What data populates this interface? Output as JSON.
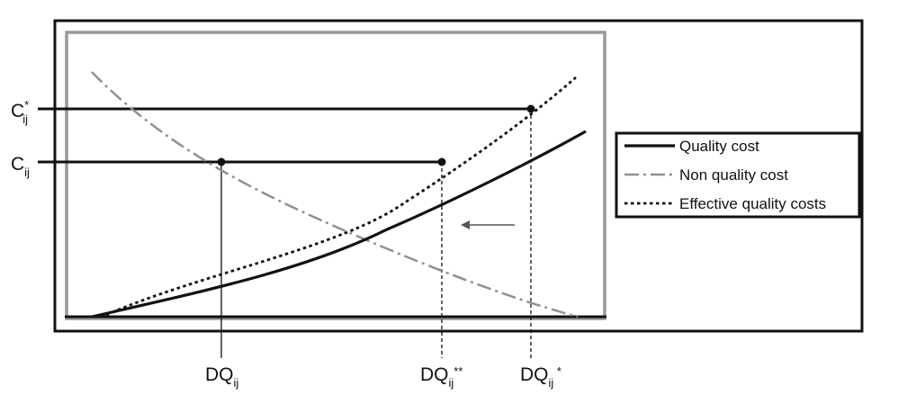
{
  "colors": {
    "outer_frame": "#111111",
    "inner_frame": "#999999",
    "quality_cost": "#111111",
    "non_quality_cost": "#909090",
    "effective_quality_costs": "#111111",
    "guide_lines": "#111111",
    "arrow": "#555555"
  },
  "y_labels": {
    "c_star": {
      "main": "C",
      "sub": "ij",
      "sup": "*"
    },
    "c": {
      "main": "C",
      "sub": "ij"
    }
  },
  "x_labels": {
    "dq": {
      "main": "DQ",
      "sub": "ij",
      "suffix": ""
    },
    "dq_double_star": {
      "main": "DQ",
      "sub": "ij",
      "suffix": "**"
    },
    "dq_star": {
      "main": "DQ",
      "sub": "ij",
      "suffix": " *"
    }
  },
  "legend": {
    "position": "right",
    "items": [
      {
        "label": "Quality cost",
        "style": "solid"
      },
      {
        "label": "Non quality cost",
        "style": "dash-dot"
      },
      {
        "label": "Effective quality costs",
        "style": "dotted"
      }
    ]
  },
  "arrow": {
    "direction": "left"
  },
  "icons": {
    "arrow": "left-arrow-icon",
    "points": "marker-dot-icon"
  }
}
